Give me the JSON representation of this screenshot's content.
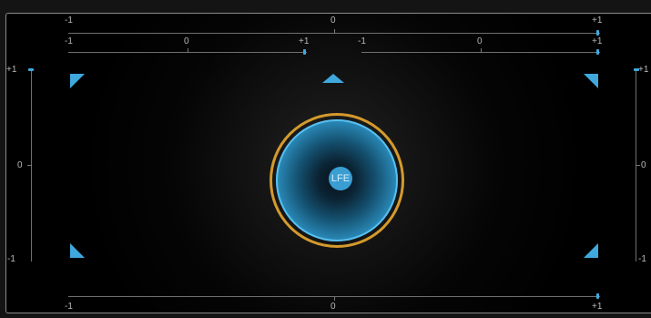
{
  "panner": {
    "top_scale": {
      "min": "-1",
      "mid": "0",
      "max": "+1",
      "value": 1
    },
    "front_left_scale": {
      "min": "-1",
      "mid": "0",
      "max": "+1",
      "value": 1
    },
    "front_right_scale": {
      "min": "-1",
      "mid": "0",
      "max": "+1",
      "value": 1
    },
    "bottom_scale": {
      "min": "-1",
      "mid": "0",
      "max": "+1",
      "value": 1
    },
    "left_scale": {
      "max": "+1",
      "mid": "0",
      "min": "-1",
      "value": 1
    },
    "right_scale": {
      "max": "+1",
      "mid": "0",
      "min": "-1",
      "value": 1
    },
    "lfe_label": "LFE",
    "speakers": [
      "front-left",
      "center",
      "front-right",
      "surround-left",
      "surround-right"
    ],
    "colors": {
      "accent": "#3fa9de",
      "ring": "#d49a2c",
      "rail": "#6f6f6f",
      "text": "#b9b9b9"
    }
  }
}
